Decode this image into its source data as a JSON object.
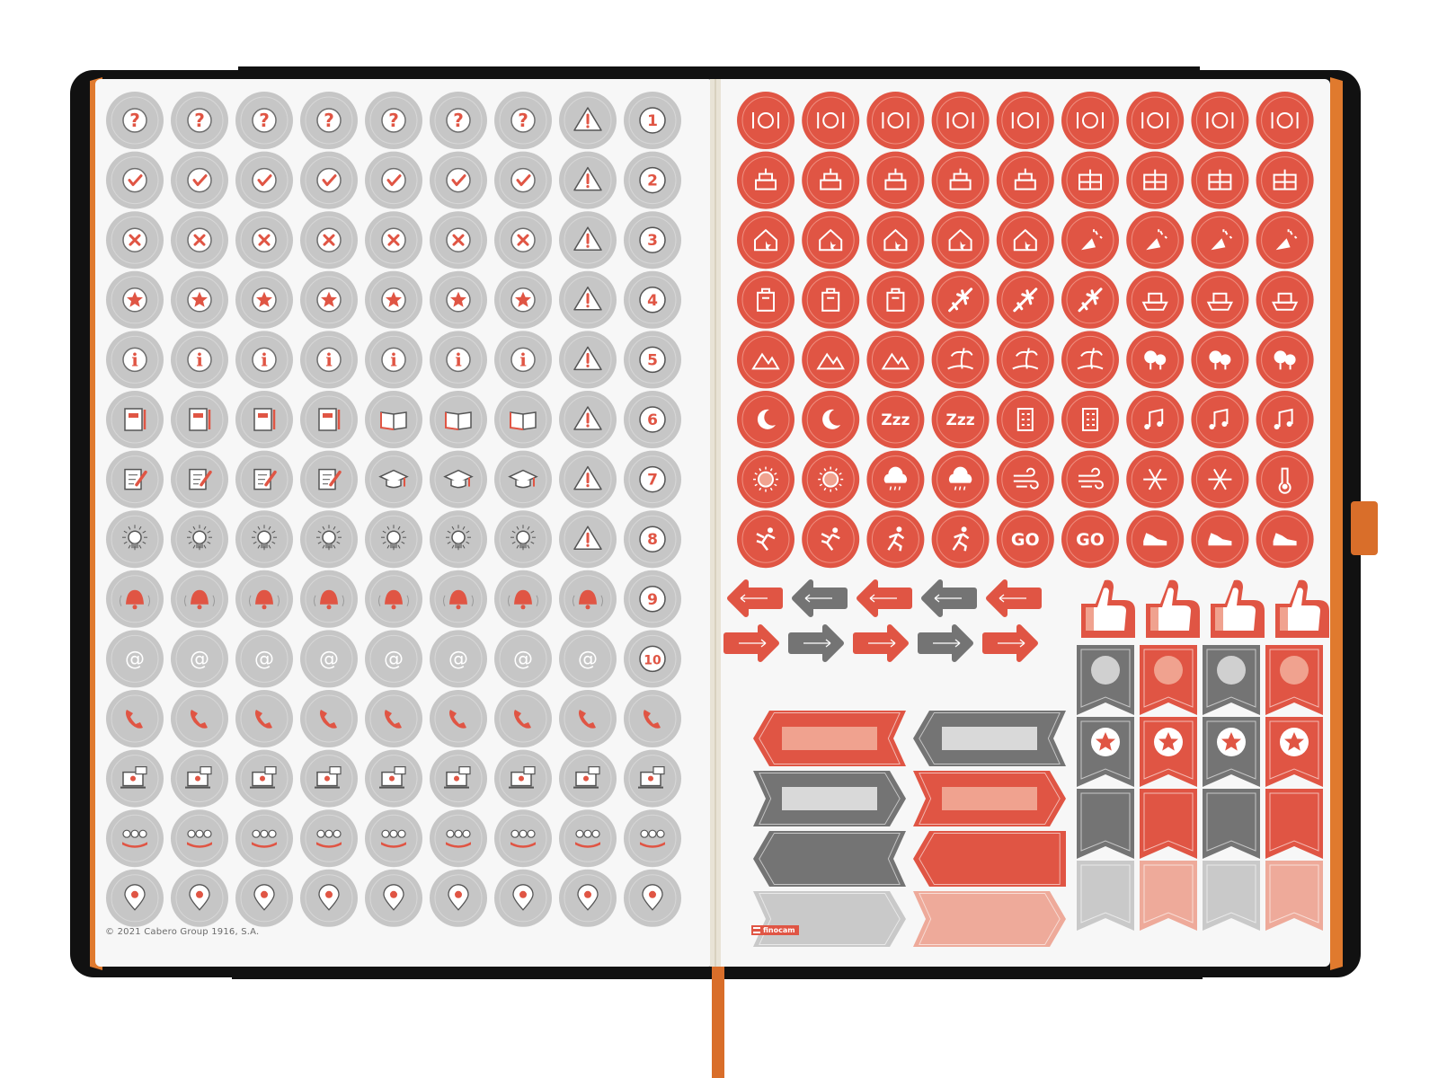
{
  "copyright": "© 2021 Cabero Group 1916, S.A.",
  "brand": "finocam",
  "colors": {
    "red": "#e05544",
    "red_light": "#eeaa9a",
    "grey_dark": "#747474",
    "grey_light": "#c9c9c9",
    "page": "#f7f7f7",
    "cover": "#111111",
    "edge": "#e07a2e"
  },
  "left_page": {
    "icon_rows": [
      "question-icon",
      "check-icon",
      "cross-icon",
      "star-icon",
      "info-icon",
      "notebook-icon",
      "notepad-pencil-icon",
      "lightbulb-icon",
      "bell-icon",
      "at-sign-icon",
      "phone-icon",
      "video-call-icon",
      "group-icon",
      "location-pin-icon"
    ],
    "row_variants": {
      "5": [
        "notebook-icon",
        "notebook-icon",
        "notebook-icon",
        "notebook-icon",
        "open-book-icon",
        "open-book-icon",
        "open-book-icon",
        "warning-icon"
      ],
      "6": [
        "notepad-pencil-icon",
        "notepad-pencil-icon",
        "notepad-pencil-icon",
        "notepad-pencil-icon",
        "graduation-cap-icon",
        "graduation-cap-icon",
        "graduation-cap-icon",
        "warning-icon"
      ]
    },
    "number_column": [
      "1",
      "2",
      "3",
      "4",
      "5",
      "6",
      "7",
      "8",
      "9",
      "10"
    ]
  },
  "right_page": {
    "icon_rows": [
      [
        "plate-cutlery-icon",
        "plate-cutlery-icon",
        "plate-cutlery-icon",
        "plate-cutlery-icon",
        "plate-cutlery-icon",
        "plate-cutlery-icon",
        "plate-cutlery-icon",
        "plate-cutlery-icon",
        "plate-cutlery-icon"
      ],
      [
        "birthday-cake-icon",
        "birthday-cake-icon",
        "birthday-cake-icon",
        "birthday-cake-icon",
        "birthday-cake-icon",
        "gift-icon",
        "gift-icon",
        "gift-icon",
        "gift-icon"
      ],
      [
        "home-ticket-icon",
        "home-ticket-icon",
        "home-ticket-icon",
        "home-ticket-icon",
        "home-ticket-icon",
        "party-popper-icon",
        "party-popper-icon",
        "party-popper-icon",
        "party-popper-icon"
      ],
      [
        "suitcase-icon",
        "suitcase-icon",
        "suitcase-icon",
        "airplane-icon",
        "airplane-icon",
        "airplane-icon",
        "ship-icon",
        "ship-icon",
        "ship-icon"
      ],
      [
        "mountains-icon",
        "mountains-icon",
        "mountains-icon",
        "palm-beach-icon",
        "palm-beach-icon",
        "palm-beach-icon",
        "forest-icon",
        "forest-icon",
        "forest-icon"
      ],
      [
        "moon-stars-icon",
        "moon-stars-icon",
        "sleep-zzz-icon",
        "sleep-zzz-icon",
        "city-building-icon",
        "city-building-icon",
        "music-notes-icon",
        "music-notes-icon",
        "music-notes-icon"
      ],
      [
        "sun-icon",
        "sun-icon",
        "rain-cloud-icon",
        "rain-cloud-icon",
        "wind-icon",
        "wind-icon",
        "snowflake-icon",
        "snowflake-icon",
        "thermometer-icon"
      ],
      [
        "exercise-icon",
        "exercise-icon",
        "running-icon",
        "running-icon",
        "go-text-icon",
        "go-text-icon",
        "sneaker-icon",
        "sneaker-icon",
        "sneaker-icon"
      ]
    ],
    "go_label": "GO",
    "arrow_rows": [
      [
        "arrow-left-icon",
        "arrow-left-icon",
        "arrow-left-icon",
        "arrow-left-icon",
        "arrow-left-icon"
      ],
      [
        "arrow-right-icon",
        "arrow-right-icon",
        "arrow-right-icon",
        "arrow-right-icon",
        "arrow-right-icon"
      ]
    ],
    "arrow_colors": [
      "red",
      "grey_dark",
      "red",
      "grey_dark",
      "red"
    ],
    "thumbs": [
      "thumbs-up-icon",
      "thumbs-up-icon",
      "thumbs-up-icon",
      "thumbs-up-icon"
    ],
    "banners": [
      [
        "red",
        "grey_dark"
      ],
      [
        "grey_dark",
        "red"
      ],
      [
        "grey_dark",
        "red"
      ],
      [
        "grey_light",
        "red_light"
      ]
    ],
    "ribbon_rows": [
      [
        "grey_dark",
        "red",
        "grey_dark",
        "red"
      ],
      [
        "grey_dark",
        "red",
        "grey_dark",
        "red"
      ],
      [
        "grey_dark",
        "red",
        "grey_dark",
        "red"
      ],
      [
        "grey_light",
        "red_light",
        "grey_light",
        "red_light"
      ]
    ]
  }
}
